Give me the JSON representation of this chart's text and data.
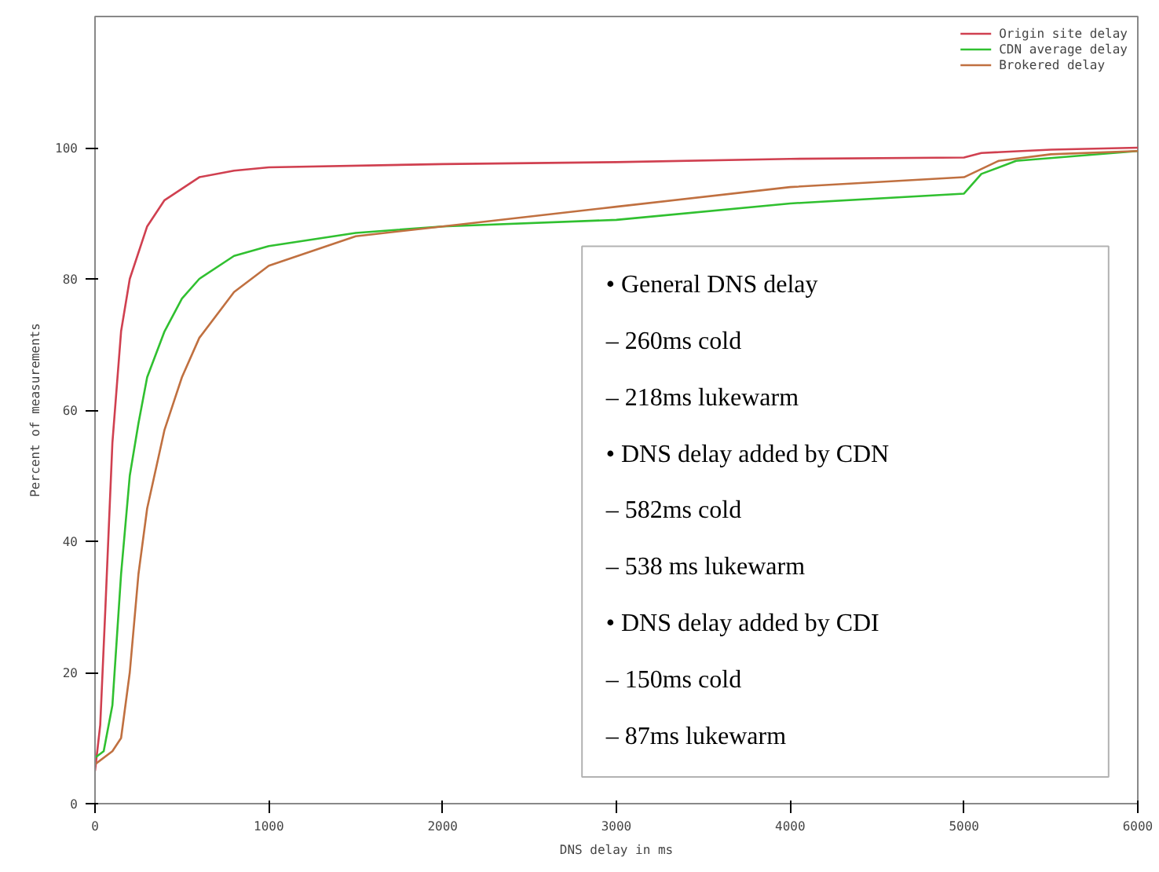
{
  "chart_data": {
    "type": "line",
    "xlabel": "DNS delay in ms",
    "ylabel": "Percent of measurements",
    "xlim": [
      0,
      6000
    ],
    "ylim": [
      0,
      120
    ],
    "xticks": [
      0,
      1000,
      2000,
      3000,
      4000,
      5000,
      6000
    ],
    "yticks": [
      0,
      20,
      40,
      60,
      80,
      100
    ],
    "grid": false,
    "legend": "top right",
    "marker": "none",
    "line_style": "solid",
    "series": [
      {
        "name": "Origin site delay",
        "color": "#d04050",
        "x": [
          0,
          30,
          60,
          100,
          150,
          200,
          300,
          400,
          600,
          800,
          1000,
          2000,
          3000,
          4000,
          5000,
          5100,
          5500,
          6000
        ],
        "values": [
          5,
          12,
          30,
          55,
          72,
          80,
          88,
          92,
          95.5,
          96.5,
          97,
          97.5,
          97.8,
          98.3,
          98.5,
          99.2,
          99.7,
          100
        ]
      },
      {
        "name": "CDN average delay",
        "color": "#30c030",
        "x": [
          0,
          50,
          100,
          150,
          200,
          250,
          300,
          400,
          500,
          600,
          800,
          1000,
          1500,
          2000,
          3000,
          4000,
          5000,
          5100,
          5300,
          6000
        ],
        "values": [
          7,
          8,
          15,
          35,
          50,
          58,
          65,
          72,
          77,
          80,
          83.5,
          85,
          87,
          88,
          89,
          91.5,
          93,
          96,
          98,
          99.5
        ]
      },
      {
        "name": "Brokered delay",
        "color": "#c07040",
        "x": [
          0,
          100,
          150,
          200,
          250,
          300,
          400,
          500,
          600,
          800,
          1000,
          1500,
          2000,
          3000,
          4000,
          5000,
          5200,
          5500,
          6000
        ],
        "values": [
          6,
          8,
          10,
          20,
          35,
          45,
          57,
          65,
          71,
          78,
          82,
          86.5,
          88,
          91,
          94,
          95.5,
          98,
          99,
          99.5
        ]
      }
    ],
    "annotations": [
      "• General DNS delay",
      "– 260ms cold",
      "– 218ms lukewarm",
      "• DNS delay added by CDN",
      "– 582ms cold",
      "– 538 ms lukewarm",
      "• DNS delay added by CDI",
      "– 150ms cold",
      "– 87ms lukewarm"
    ]
  }
}
